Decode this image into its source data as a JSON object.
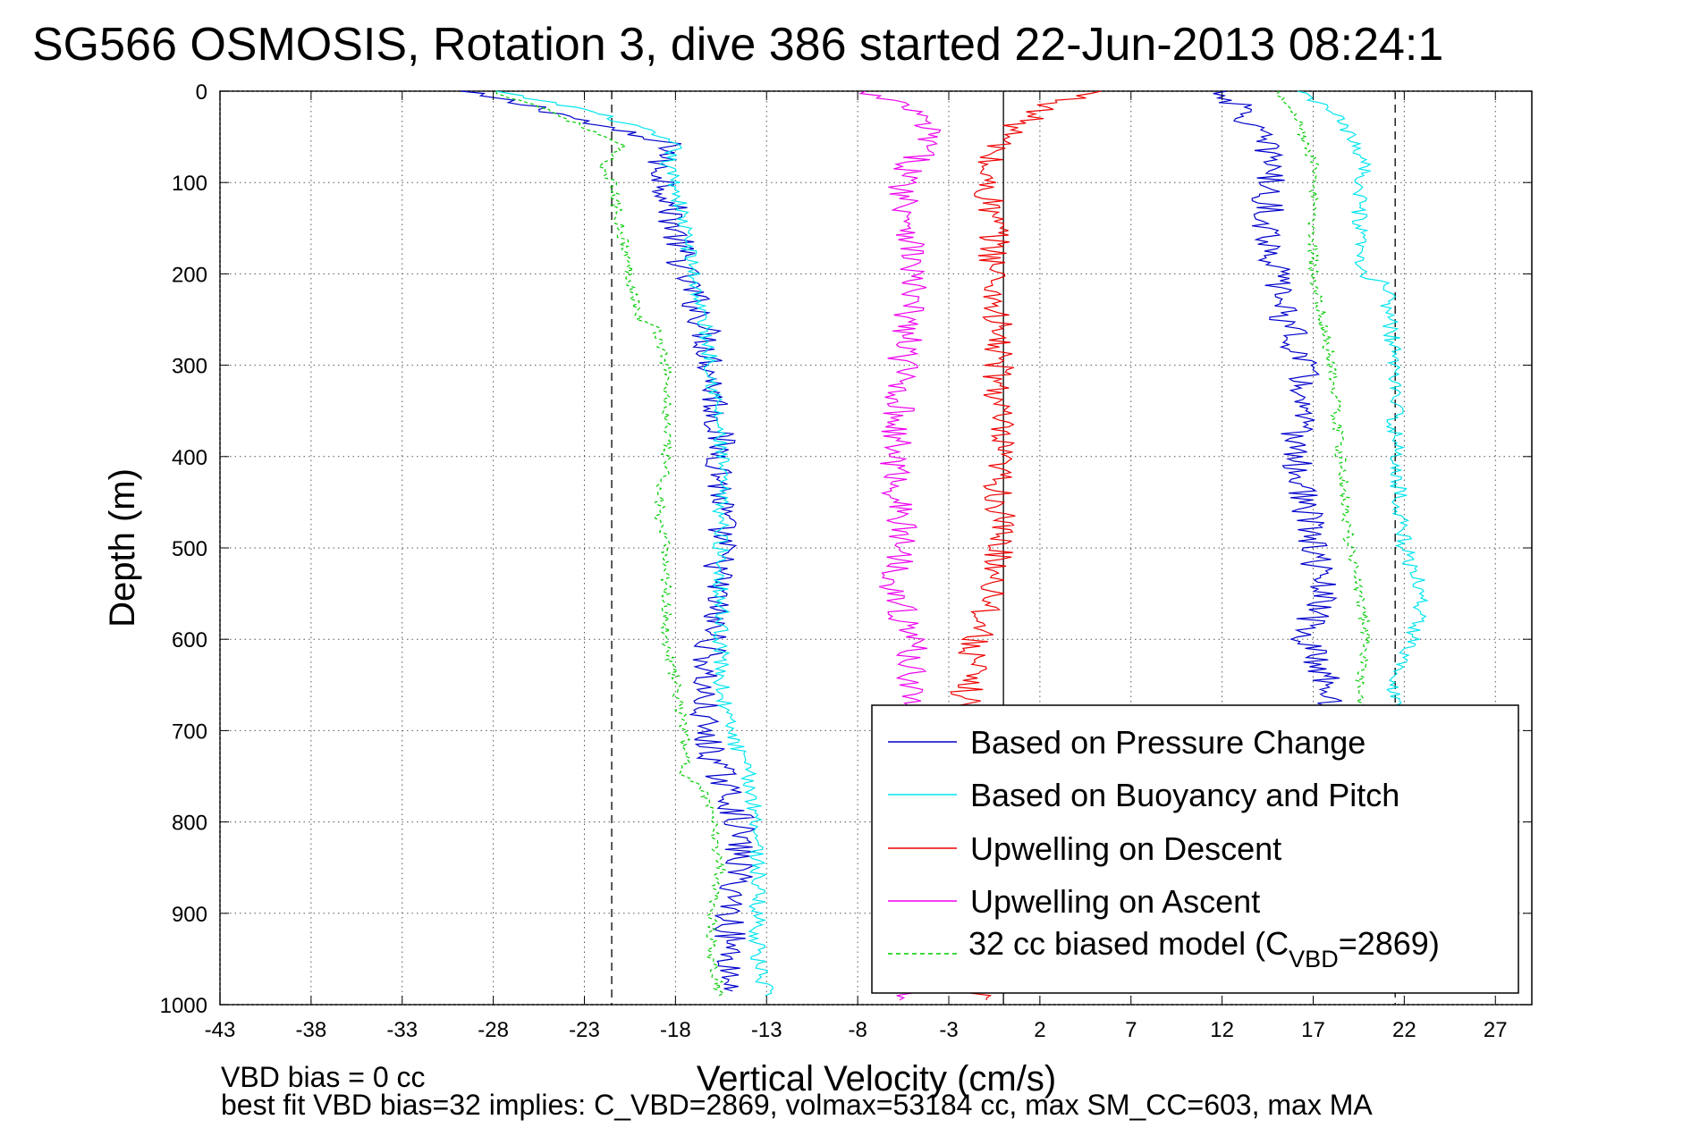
{
  "chart_data": {
    "type": "line",
    "title": "SG566 OSMOSIS, Rotation 3, dive 386 started 22-Jun-2013 08:24:1",
    "xlabel": "Vertical Velocity (cm/s)",
    "ylabel": "Depth (m)",
    "xlim": [
      -43,
      29
    ],
    "ylim": [
      0,
      1000
    ],
    "y_reversed": true,
    "xticks": [
      -43,
      -38,
      -33,
      -28,
      -23,
      -18,
      -13,
      -8,
      -3,
      2,
      7,
      12,
      17,
      22,
      27
    ],
    "yticks": [
      0,
      100,
      200,
      300,
      400,
      500,
      600,
      700,
      800,
      900,
      1000
    ],
    "grid": true,
    "legend_position": "bottom-right",
    "reference_lines": [
      {
        "x": -21.5,
        "style": "dashed",
        "color": "#000000"
      },
      {
        "x": 0,
        "style": "solid",
        "color": "#000000"
      },
      {
        "x": 21.5,
        "style": "dashed",
        "color": "#000000"
      }
    ],
    "legend": {
      "items": [
        {
          "label": "Based on Pressure Change",
          "color": "#0000cc",
          "dash": "solid"
        },
        {
          "label": "Based on Buoyancy and Pitch",
          "color": "#00e5ee",
          "dash": "solid"
        },
        {
          "label": "Upwelling on Descent",
          "color": "#ee0000",
          "dash": "solid"
        },
        {
          "label": "Upwelling on Ascent",
          "color": "#ee00ee",
          "dash": "solid"
        },
        {
          "label_prefix": "32 cc biased model (C",
          "label_sub": "VBD",
          "label_suffix": "=2869)",
          "color": "#00cc00",
          "dash": "dashed"
        }
      ]
    },
    "series": [
      {
        "name": "Based on Pressure Change",
        "color": "#0000cc",
        "dash": "solid",
        "segments": [
          {
            "depth": [
              0,
              20,
              40,
              60,
              80,
              100,
              150,
              200,
              250,
              300,
              400,
              500,
              600,
              650,
              700,
              750,
              800,
              850,
              900,
              950,
              985
            ],
            "x": [
              -30,
              -25,
              -22,
              -18,
              -19,
              -18.5,
              -18,
              -17.5,
              -16.5,
              -16,
              -15.5,
              -15.5,
              -16,
              -16.5,
              -16.5,
              -15.5,
              -14.5,
              -14.5,
              -15,
              -15,
              -15
            ]
          },
          {
            "depth": [
              0,
              20,
              50,
              80,
              100,
              150,
              200,
              250,
              300,
              400,
              500,
              550,
              600,
              650,
              700
            ],
            "x": [
              12,
              13,
              14,
              15,
              14.5,
              14.5,
              15,
              15.5,
              16.5,
              16,
              17,
              17.5,
              16.5,
              18,
              17.5
            ]
          }
        ],
        "noise": 0.9
      },
      {
        "name": "Based on Buoyancy and Pitch",
        "color": "#00e5ee",
        "dash": "solid",
        "segments": [
          {
            "depth": [
              0,
              20,
              40,
              60,
              80,
              100,
              150,
              200,
              300,
              400,
              500,
              600,
              650,
              700,
              750,
              800,
              850,
              900,
              950,
              990
            ],
            "x": [
              -28,
              -23,
              -20,
              -18,
              -18.5,
              -18,
              -17.5,
              -17,
              -16,
              -15.5,
              -15.5,
              -15.5,
              -15.5,
              -15,
              -14,
              -13.5,
              -13.5,
              -13.5,
              -13.5,
              -13
            ]
          },
          {
            "depth": [
              0,
              20,
              50,
              80,
              100,
              150,
              200,
              210,
              300,
              400,
              500,
              550,
              600,
              650,
              700
            ],
            "x": [
              16,
              18,
              19,
              20,
              19.5,
              19.5,
              19.5,
              21,
              21.5,
              21.5,
              22,
              23,
              22.5,
              21.5,
              21.5
            ]
          }
        ],
        "noise": 0.45
      },
      {
        "name": "Upwelling on Descent",
        "color": "#ee0000",
        "dash": "solid",
        "segments": [
          {
            "depth": [
              0,
              20,
              50,
              80,
              100,
              150,
              200,
              300,
              400,
              500,
              550,
              600,
              650,
              700,
              750,
              800,
              850,
              900,
              950,
              995
            ],
            "x": [
              5,
              2,
              0,
              -1,
              -1,
              -0.5,
              -0.5,
              -0.3,
              -0.3,
              -0.2,
              -0.5,
              -1.5,
              -2,
              -2,
              -2,
              -2,
              -2,
              -2,
              -2,
              -1
            ]
          }
        ],
        "noise": 0.9
      },
      {
        "name": "Upwelling on Ascent",
        "color": "#ee00ee",
        "dash": "solid",
        "segments": [
          {
            "depth": [
              0,
              20,
              50,
              80,
              100,
              150,
              200,
              300,
              400,
              500,
              550,
              600,
              650,
              700,
              750,
              800,
              850,
              900,
              950,
              995
            ],
            "x": [
              -8,
              -5,
              -4,
              -5,
              -5.5,
              -5,
              -5,
              -5.5,
              -6,
              -5.5,
              -6,
              -5,
              -5,
              -5,
              -5,
              -5,
              -5,
              -5,
              -5,
              -5
            ]
          }
        ],
        "noise": 0.9
      },
      {
        "name": "32 cc biased model (CVBD=2869)",
        "color": "#00cc00",
        "dash": "dashed",
        "segments": [
          {
            "depth": [
              0,
              20,
              40,
              60,
              80,
              100,
              150,
              200,
              250,
              260,
              300,
              400,
              470,
              500,
              600,
              650,
              700,
              750,
              760,
              800,
              850,
              900,
              950,
              990
            ],
            "x": [
              -28,
              -25,
              -23,
              -21,
              -22,
              -21.5,
              -21,
              -20.5,
              -20,
              -19,
              -18.5,
              -18.5,
              -19,
              -18.5,
              -18.5,
              -18,
              -17.5,
              -17.5,
              -16.5,
              -16,
              -15.5,
              -16,
              -16,
              -15.5
            ]
          },
          {
            "depth": [
              0,
              20,
              50,
              80,
              100,
              150,
              200,
              250,
              300,
              400,
              500,
              550,
              600,
              650,
              700
            ],
            "x": [
              15,
              16,
              16.5,
              17,
              17,
              17,
              17,
              17.5,
              18,
              18.5,
              19,
              19.5,
              20,
              19.5,
              19.5
            ]
          }
        ],
        "noise": 0.3
      }
    ],
    "annotations": {
      "bias_line": "VBD bias = 0 cc",
      "fit_line": "best fit VBD bias=32 implies: C_VBD=2869, volmax=53184 cc, max SM_CC=603, max MA"
    }
  }
}
